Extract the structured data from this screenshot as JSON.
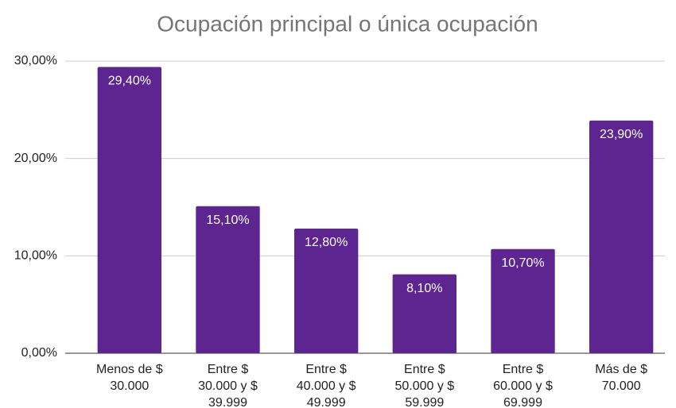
{
  "chart_data": {
    "type": "bar",
    "title": "Ocupación principal o única ocupación",
    "categories": [
      "Menos de $ 30.000",
      "Entre $ 30.000 y $ 39.999",
      "Entre $ 40.000 y $ 49.999",
      "Entre $ 50.000 y $ 59.999",
      "Entre $ 60.000 y $ 69.999",
      "Más de $ 70.000"
    ],
    "values": [
      29.4,
      15.1,
      12.8,
      8.1,
      10.7,
      23.9
    ],
    "value_labels": [
      "29,40%",
      "15,10%",
      "12,80%",
      "8,10%",
      "10,70%",
      "23,90%"
    ],
    "color": "#5c2590",
    "ylim": [
      0,
      30
    ],
    "yticks": [
      {
        "value": 0,
        "label": "0,00%"
      },
      {
        "value": 10,
        "label": "10,00%"
      },
      {
        "value": 20,
        "label": "20,00%"
      },
      {
        "value": 30,
        "label": "30,00%"
      }
    ],
    "grid": true
  }
}
